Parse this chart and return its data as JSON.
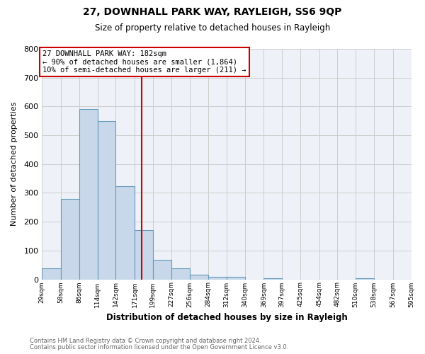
{
  "title": "27, DOWNHALL PARK WAY, RAYLEIGH, SS6 9QP",
  "subtitle": "Size of property relative to detached houses in Rayleigh",
  "xlabel": "Distribution of detached houses by size in Rayleigh",
  "ylabel": "Number of detached properties",
  "bin_edges": [
    29,
    58,
    86,
    114,
    142,
    171,
    199,
    227,
    256,
    284,
    312,
    340,
    369,
    397,
    425,
    454,
    482,
    510,
    538,
    567,
    595
  ],
  "bar_heights": [
    38,
    278,
    590,
    550,
    322,
    170,
    67,
    38,
    15,
    8,
    8,
    0,
    3,
    0,
    0,
    0,
    0,
    3,
    0,
    0
  ],
  "bar_color": "#c8d8ea",
  "bar_edge_color": "#6699bb",
  "vline_x": 182,
  "vline_color": "#cc0000",
  "annotation_text": "27 DOWNHALL PARK WAY: 182sqm\n← 90% of detached houses are smaller (1,864)\n10% of semi-detached houses are larger (211) →",
  "annotation_box_color": "#ffffff",
  "annotation_box_edge_color": "#cc0000",
  "ylim": [
    0,
    800
  ],
  "yticks": [
    0,
    100,
    200,
    300,
    400,
    500,
    600,
    700,
    800
  ],
  "tick_labels": [
    "29sqm",
    "58sqm",
    "86sqm",
    "114sqm",
    "142sqm",
    "171sqm",
    "199sqm",
    "227sqm",
    "256sqm",
    "284sqm",
    "312sqm",
    "340sqm",
    "369sqm",
    "397sqm",
    "425sqm",
    "454sqm",
    "482sqm",
    "510sqm",
    "538sqm",
    "567sqm",
    "595sqm"
  ],
  "footer1": "Contains HM Land Registry data © Crown copyright and database right 2024.",
  "footer2": "Contains public sector information licensed under the Open Government Licence v3.0.",
  "fig_bg_color": "#ffffff",
  "plot_bg_color": "#eef2f8"
}
